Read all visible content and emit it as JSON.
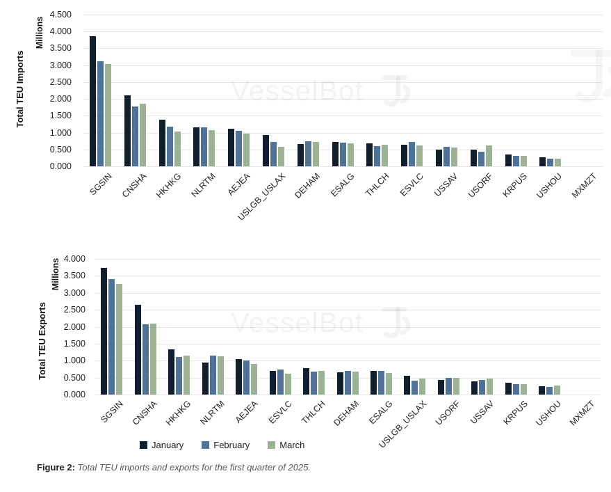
{
  "watermark": {
    "text": "VesselBot",
    "logo_icon": "vesselbot-logo"
  },
  "legend": {
    "items": [
      {
        "label": "January",
        "color": "#101e2d"
      },
      {
        "label": "February",
        "color": "#507395"
      },
      {
        "label": "March",
        "color": "#9bb295"
      }
    ]
  },
  "caption": {
    "prefix": "Figure 2:",
    "text": "Total TEU imports and exports for the first quarter of 2025."
  },
  "colors": {
    "january": "#101e2d",
    "february": "#507395",
    "march": "#9bb295",
    "gridline": "#e5e7e9",
    "axis_text": "#212121",
    "watermark": "#f0f1f2"
  },
  "chart_data": [
    {
      "id": "imports",
      "type": "bar",
      "title": "",
      "ylabel": "Total TEU Imports",
      "units_label": "Millions",
      "ylim": [
        0,
        4.5
      ],
      "ytick_step": 0.5,
      "grid": true,
      "legend_position": "shared-bottom",
      "yticks": [
        "4.500",
        "4.000",
        "3.500",
        "3.000",
        "2.500",
        "2.000",
        "1.500",
        "1.000",
        "0.500",
        "0.000"
      ],
      "categories": [
        "SGSIN",
        "CNSHA",
        "HKHKG",
        "NLRTM",
        "AEJEA",
        "USLGB_USLAX",
        "DEHAM",
        "ESALG",
        "THLCH",
        "ESVLC",
        "USSAV",
        "USORF",
        "KRPUS",
        "USHOU",
        "MXMZT"
      ],
      "series": [
        {
          "name": "January",
          "values": [
            3.85,
            2.1,
            1.38,
            1.15,
            1.12,
            0.93,
            0.66,
            0.72,
            0.68,
            0.64,
            0.5,
            0.49,
            0.35,
            0.26,
            0
          ]
        },
        {
          "name": "February",
          "values": [
            3.12,
            1.77,
            1.18,
            1.16,
            1.05,
            0.72,
            0.74,
            0.7,
            0.59,
            0.72,
            0.58,
            0.44,
            0.31,
            0.23,
            0
          ]
        },
        {
          "name": "March",
          "values": [
            3.04,
            1.86,
            1.03,
            1.08,
            0.96,
            0.57,
            0.73,
            0.68,
            0.65,
            0.61,
            0.56,
            0.61,
            0.31,
            0.22,
            0
          ]
        }
      ]
    },
    {
      "id": "exports",
      "type": "bar",
      "title": "",
      "ylabel": "Total TEU Exports",
      "units_label": "Millions",
      "ylim": [
        0,
        4.0
      ],
      "ytick_step": 0.5,
      "grid": true,
      "legend_position": "shared-bottom",
      "yticks": [
        "4.000",
        "3.500",
        "3.000",
        "2.500",
        "2.000",
        "1.500",
        "1.000",
        "0.500",
        "0.000"
      ],
      "categories": [
        "SGSIN",
        "CNSHA",
        "HKHKG",
        "NLRTM",
        "AEJEA",
        "ESVLC",
        "THLCH",
        "DEHAM",
        "ESALG",
        "USLGB_USLAX",
        "USORF",
        "USSAV",
        "KRPUS",
        "USHOU",
        "MXMZT"
      ],
      "series": [
        {
          "name": "January",
          "values": [
            3.74,
            2.64,
            1.33,
            0.95,
            1.05,
            0.7,
            0.78,
            0.65,
            0.7,
            0.56,
            0.44,
            0.39,
            0.34,
            0.25,
            0
          ]
        },
        {
          "name": "February",
          "values": [
            3.41,
            2.08,
            1.1,
            1.15,
            1.0,
            0.73,
            0.67,
            0.69,
            0.69,
            0.42,
            0.49,
            0.44,
            0.3,
            0.22,
            0
          ]
        },
        {
          "name": "March",
          "values": [
            3.26,
            2.09,
            1.14,
            1.13,
            0.91,
            0.62,
            0.69,
            0.68,
            0.63,
            0.48,
            0.49,
            0.48,
            0.3,
            0.26,
            0
          ]
        }
      ]
    }
  ]
}
